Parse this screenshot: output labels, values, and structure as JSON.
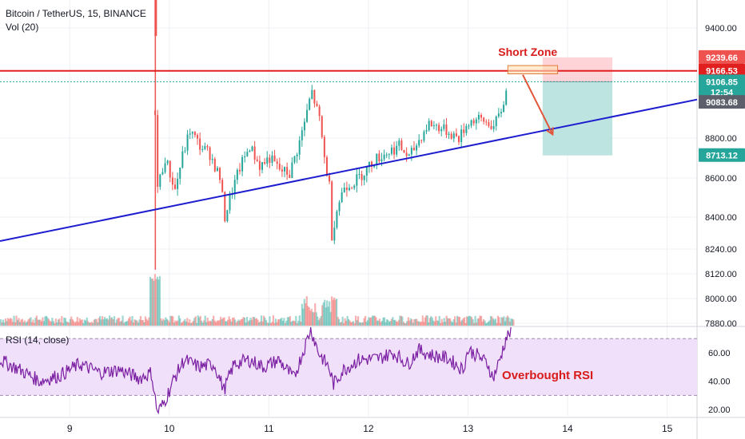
{
  "header": {
    "title": "Bitcoin / TetherUS, 15, BINANCE",
    "volume_label": "Vol (20)",
    "rsi_label": "RSI (14, close)"
  },
  "annotations": {
    "short_zone": "Short Zone",
    "overbought": "Overbought RSI"
  },
  "colors": {
    "up": "#26a69a",
    "down": "#ef5350",
    "resistance": "#e21f1f",
    "trendline": "#1d1dcf",
    "rsi_line": "#7b1fa2",
    "rsi_band": "#f0e0fa",
    "target_zone": "#b2dfdb",
    "stop_zone": "#ffcdd2",
    "annotation_text": "#d81b1b",
    "badge_dark": "#5d606b"
  },
  "chart_data": {
    "type": "candlestick",
    "symbol": "Bitcoin / TetherUS",
    "interval": "15",
    "exchange": "BINANCE",
    "x_ticks": [
      "9",
      "10",
      "11",
      "12",
      "13",
      "14",
      "15"
    ],
    "xlim": [
      8.3,
      15.3
    ],
    "price_ticks": [
      "9400.00",
      "9239.66",
      "9166.53",
      "9106.85",
      "9083.68",
      "8800.00",
      "8713.12",
      "8600.00",
      "8400.00",
      "8240.00",
      "8120.00",
      "8000.00",
      "7880.00"
    ],
    "price_badges": [
      {
        "label": "9239.66",
        "value": 9239.66,
        "color": "#ef5350"
      },
      {
        "label": "9166.53",
        "value": 9166.53,
        "color": "#e21f1f"
      },
      {
        "label": "9106.85",
        "value": 9106.85,
        "color": "#26a69a"
      },
      {
        "label": "12:54",
        "value": 9050,
        "color": "#26a69a"
      },
      {
        "label": "9083.68",
        "value": 8995,
        "color": "#5d606b"
      },
      {
        "label": "8713.12",
        "value": 8713.12,
        "color": "#26a69a"
      }
    ],
    "resistance_level": 9166.53,
    "current_price": 9106.85,
    "trendline": {
      "from": [
        8.3,
        8280
      ],
      "to": [
        15.3,
        9010
      ]
    },
    "short_position": {
      "x_range": [
        13.75,
        14.45
      ],
      "entry": 9106.85,
      "stop": 9239.66,
      "target": 8713.12
    },
    "short_zone_box": {
      "x_range": [
        13.4,
        13.9
      ],
      "price_range": [
        9150,
        9195
      ]
    },
    "arrow": {
      "from": [
        13.55,
        9145
      ],
      "to": [
        13.85,
        8820
      ]
    },
    "price_path": [
      [
        8.3,
        null
      ],
      [
        9.85,
        8950
      ],
      [
        9.87,
        8540
      ],
      [
        9.95,
        8700
      ],
      [
        10.05,
        8540
      ],
      [
        10.12,
        8700
      ],
      [
        10.2,
        8840
      ],
      [
        10.3,
        8760
      ],
      [
        10.4,
        8720
      ],
      [
        10.5,
        8600
      ],
      [
        10.55,
        8400
      ],
      [
        10.62,
        8530
      ],
      [
        10.7,
        8650
      ],
      [
        10.8,
        8760
      ],
      [
        10.9,
        8660
      ],
      [
        11.0,
        8700
      ],
      [
        11.1,
        8640
      ],
      [
        11.2,
        8620
      ],
      [
        11.3,
        8780
      ],
      [
        11.38,
        8950
      ],
      [
        11.42,
        9060
      ],
      [
        11.5,
        8900
      ],
      [
        11.55,
        8700
      ],
      [
        11.6,
        8560
      ],
      [
        11.62,
        8300
      ],
      [
        11.68,
        8450
      ],
      [
        11.75,
        8560
      ],
      [
        11.85,
        8580
      ],
      [
        11.95,
        8630
      ],
      [
        12.05,
        8690
      ],
      [
        12.15,
        8720
      ],
      [
        12.3,
        8760
      ],
      [
        12.4,
        8700
      ],
      [
        12.5,
        8790
      ],
      [
        12.6,
        8880
      ],
      [
        12.7,
        8860
      ],
      [
        12.8,
        8830
      ],
      [
        12.9,
        8800
      ],
      [
        13.0,
        8890
      ],
      [
        13.1,
        8900
      ],
      [
        13.2,
        8880
      ],
      [
        13.25,
        8860
      ],
      [
        13.32,
        8940
      ],
      [
        13.4,
        9100
      ]
    ],
    "rsi": {
      "ylim": [
        15,
        78
      ],
      "ticks": [
        60,
        40,
        20
      ],
      "band": [
        70,
        30
      ],
      "path": [
        [
          8.3,
          55
        ],
        [
          8.5,
          48
        ],
        [
          8.7,
          40
        ],
        [
          8.9,
          44
        ],
        [
          9.1,
          52
        ],
        [
          9.3,
          46
        ],
        [
          9.5,
          48
        ],
        [
          9.7,
          42
        ],
        [
          9.82,
          46
        ],
        [
          9.88,
          18
        ],
        [
          9.95,
          25
        ],
        [
          10.05,
          42
        ],
        [
          10.15,
          55
        ],
        [
          10.3,
          50
        ],
        [
          10.45,
          52
        ],
        [
          10.55,
          34
        ],
        [
          10.65,
          52
        ],
        [
          10.8,
          55
        ],
        [
          10.95,
          50
        ],
        [
          11.1,
          55
        ],
        [
          11.25,
          42
        ],
        [
          11.35,
          62
        ],
        [
          11.42,
          77
        ],
        [
          11.5,
          60
        ],
        [
          11.6,
          50
        ],
        [
          11.65,
          38
        ],
        [
          11.75,
          48
        ],
        [
          11.9,
          55
        ],
        [
          12.1,
          56
        ],
        [
          12.25,
          60
        ],
        [
          12.4,
          52
        ],
        [
          12.5,
          62
        ],
        [
          12.65,
          58
        ],
        [
          12.8,
          56
        ],
        [
          12.95,
          48
        ],
        [
          13.0,
          62
        ],
        [
          13.1,
          58
        ],
        [
          13.2,
          52
        ],
        [
          13.25,
          42
        ],
        [
          13.32,
          55
        ],
        [
          13.38,
          70
        ],
        [
          13.43,
          75
        ]
      ]
    }
  }
}
